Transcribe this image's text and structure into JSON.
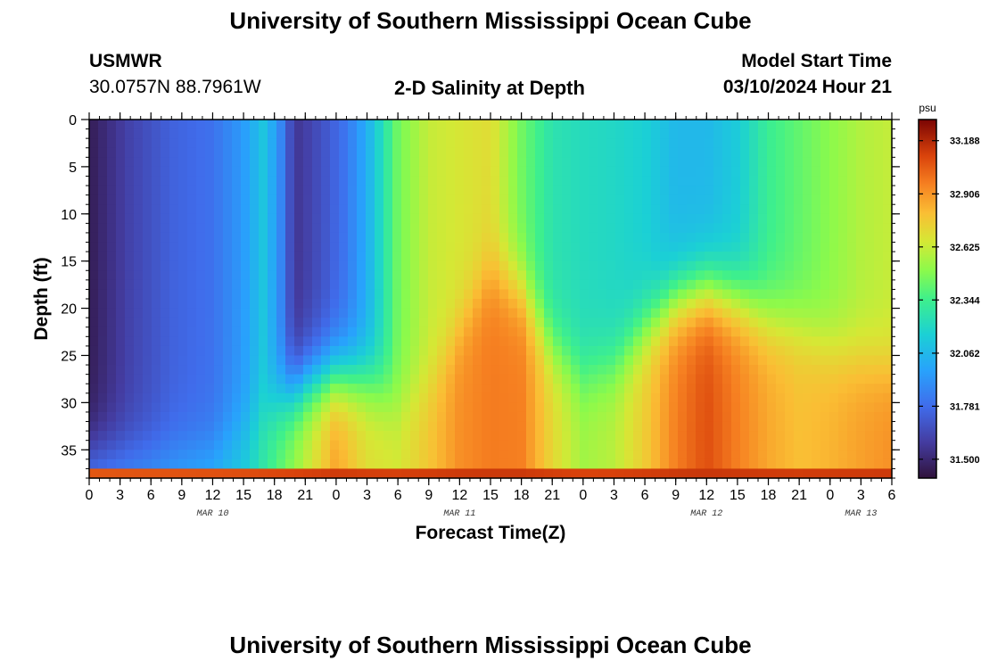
{
  "header": {
    "title": "University of Southern Mississippi Ocean Cube",
    "station_id": "USMWR",
    "station_coords": "30.0757N  88.7961W",
    "subtitle": "2-D Salinity at Depth",
    "model_start_label": "Model Start Time",
    "model_start_value": "03/10/2024 Hour 21"
  },
  "footer": {
    "title": "University of Southern Mississippi Ocean Cube"
  },
  "chart_data": {
    "type": "heatmap",
    "title": "2-D Salinity at Depth",
    "xlabel": "Forecast Time(Z)",
    "ylabel": "Depth (ft)",
    "xlim": [
      0,
      78
    ],
    "ylim": [
      38,
      0
    ],
    "x_ticks": [
      0,
      3,
      6,
      9,
      12,
      15,
      18,
      21,
      24,
      27,
      30,
      33,
      36,
      39,
      42,
      45,
      48,
      51,
      54,
      57,
      60,
      63,
      66,
      69,
      72,
      75,
      78
    ],
    "x_tick_labels": [
      "0",
      "3",
      "6",
      "9",
      "12",
      "15",
      "18",
      "21",
      "0",
      "3",
      "6",
      "9",
      "12",
      "15",
      "18",
      "21",
      "0",
      "3",
      "6",
      "9",
      "12",
      "15",
      "18",
      "21",
      "0",
      "3",
      "6"
    ],
    "y_ticks": [
      0,
      5,
      10,
      15,
      20,
      25,
      30,
      35
    ],
    "y_tick_labels": [
      "0",
      "5",
      "10",
      "15",
      "20",
      "25",
      "30",
      "35"
    ],
    "day_labels": [
      {
        "x": 12,
        "label": "MAR 10"
      },
      {
        "x": 36,
        "label": "MAR 11"
      },
      {
        "x": 60,
        "label": "MAR 12"
      },
      {
        "x": 75,
        "label": "MAR 13"
      }
    ],
    "colorbar": {
      "unit": "psu",
      "range": [
        31.4,
        33.3
      ],
      "ticks": [
        31.5,
        31.781,
        32.062,
        32.344,
        32.625,
        32.906,
        33.188
      ],
      "tick_labels": [
        "31.500",
        "31.781",
        "32.062",
        "32.344",
        "32.625",
        "32.906",
        "33.188"
      ]
    },
    "layers": {
      "surface_profile_t": [
        0,
        4,
        8,
        12,
        15,
        17,
        18.5,
        20,
        21,
        23,
        25,
        27,
        30,
        33,
        36,
        39,
        42,
        45,
        48,
        51,
        54,
        57,
        60,
        63,
        66,
        69,
        72,
        75,
        78
      ],
      "surface_profile_psu": [
        31.45,
        31.62,
        31.74,
        31.8,
        31.95,
        32.12,
        31.9,
        31.56,
        31.6,
        31.7,
        31.82,
        32.02,
        32.45,
        32.62,
        32.66,
        32.7,
        32.45,
        32.26,
        32.22,
        32.2,
        32.16,
        32.06,
        32.06,
        32.14,
        32.33,
        32.42,
        32.5,
        32.58,
        32.62
      ],
      "deep_profile_t": [
        0,
        6,
        12,
        15,
        18,
        21,
        24,
        27,
        30,
        33,
        36,
        39,
        42,
        45,
        48,
        51,
        54,
        57,
        60,
        63,
        66,
        69,
        72,
        75,
        78
      ],
      "deep_profile_psu": [
        31.95,
        32.0,
        32.08,
        32.15,
        32.38,
        32.62,
        32.88,
        32.7,
        32.66,
        32.78,
        32.92,
        32.97,
        32.96,
        32.72,
        32.55,
        32.6,
        32.76,
        32.96,
        33.08,
        32.96,
        32.86,
        32.8,
        32.83,
        32.88,
        32.92
      ],
      "halocline_depth_t": [
        0,
        6,
        12,
        15,
        18,
        21,
        24,
        27,
        30,
        33,
        36,
        39,
        42,
        45,
        48,
        51,
        54,
        57,
        60,
        63,
        66,
        69,
        72,
        75,
        78
      ],
      "halocline_depth_ft": [
        36,
        36,
        35.5,
        33,
        30,
        28,
        27,
        27.5,
        30,
        28,
        22,
        16,
        18,
        24,
        27,
        26,
        22,
        19,
        18,
        19,
        21,
        22,
        24,
        25,
        26
      ],
      "bottom_layer_psu": 33.15,
      "bottom_layer_thickness_ft": 1.5
    }
  }
}
